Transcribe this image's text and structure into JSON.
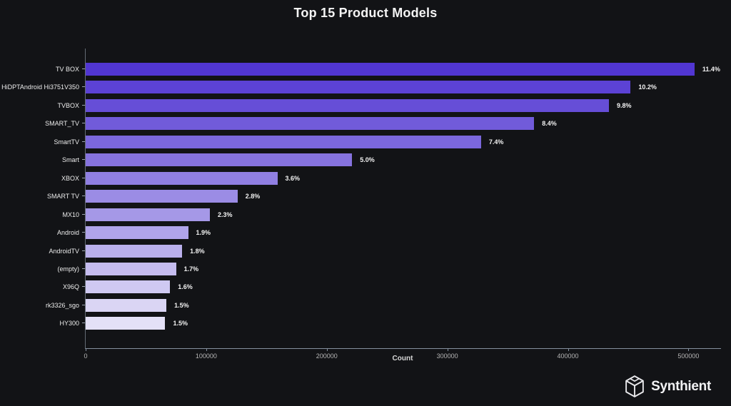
{
  "title": "Top 15 Product Models",
  "chart_data": {
    "type": "bar",
    "orientation": "horizontal",
    "title": "Top 15 Product Models",
    "xlabel": "Count",
    "ylabel": "",
    "xlim": [
      0,
      527000
    ],
    "x_ticks": [
      0,
      100000,
      200000,
      300000,
      400000,
      500000
    ],
    "grid": false,
    "legend": false,
    "categories": [
      "TV BOX",
      "HiDPTAndroid Hi3751V350",
      "TVBOX",
      "SMART_TV",
      "SmartTV",
      "Smart",
      "XBOX",
      "SMART TV",
      "MX10",
      "Android",
      "AndroidTV",
      "(empty)",
      "X96Q",
      "rk3326_sgo",
      "HY300"
    ],
    "values": [
      505000,
      452000,
      434000,
      372000,
      328000,
      221000,
      159000,
      126000,
      103000,
      85000,
      80000,
      75000,
      70000,
      67000,
      66000
    ],
    "bar_labels": [
      "11.4%",
      "10.2%",
      "9.8%",
      "8.4%",
      "7.4%",
      "5.0%",
      "3.6%",
      "2.8%",
      "2.3%",
      "1.9%",
      "1.8%",
      "1.7%",
      "1.6%",
      "1.5%",
      "1.5%"
    ],
    "bar_colors": [
      "#5136d2",
      "#5c42d5",
      "#664ed7",
      "#715bda",
      "#7b67dd",
      "#8673df",
      "#907fe2",
      "#9b8ce5",
      "#a598e7",
      "#b0a4ea",
      "#bab0ec",
      "#c5bcef",
      "#cfc9f2",
      "#dad5f4",
      "#e4e1f7"
    ]
  },
  "colors": {
    "background": "#121316",
    "axis_y": "#646c75",
    "axis_x": "#84909e",
    "title_text": "#f4f4f4",
    "tick_text": "#b6b6b6"
  },
  "watermark": {
    "brand": "Synthient"
  }
}
